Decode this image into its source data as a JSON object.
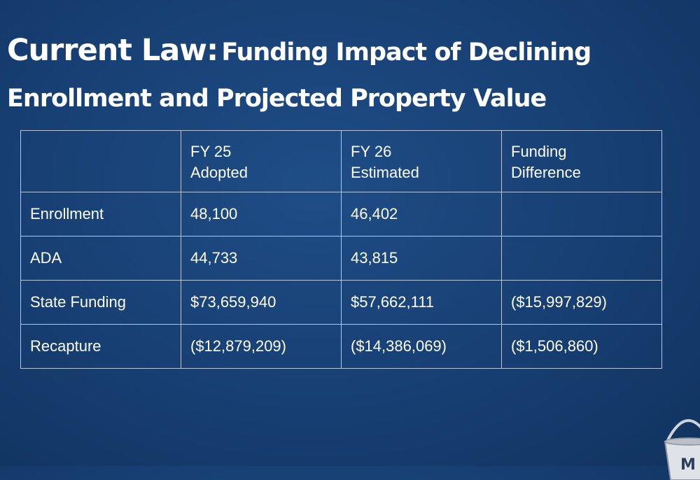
{
  "slide": {
    "title_lead": "Current Law:",
    "title_rest": "Funding Impact of Declining",
    "title_line2": "Enrollment and Projected Property Value"
  },
  "table": {
    "headers": [
      {
        "line1": "",
        "line2": ""
      },
      {
        "line1": "FY 25",
        "line2": "Adopted"
      },
      {
        "line1": "FY 26",
        "line2": "Estimated"
      },
      {
        "line1": "Funding",
        "line2": "Difference"
      }
    ],
    "rows": [
      {
        "label": "Enrollment",
        "fy25": "48,100",
        "fy26": "46,402",
        "difference": ""
      },
      {
        "label": "ADA",
        "fy25": "44,733",
        "fy26": "43,815",
        "difference": ""
      },
      {
        "label": "State Funding",
        "fy25": "$73,659,940",
        "fy26": "$57,662,111",
        "difference": "($15,997,829)"
      },
      {
        "label": "Recapture",
        "fy25": "($12,879,209)",
        "fy26": "($14,386,069)",
        "difference": "($1,506,860)"
      }
    ]
  },
  "corner_graphic": {
    "icon": "bucket-icon",
    "letter": "M"
  },
  "colors": {
    "background": "#173f73",
    "text": "#ffffff",
    "grid_line": "#b9c6da"
  }
}
